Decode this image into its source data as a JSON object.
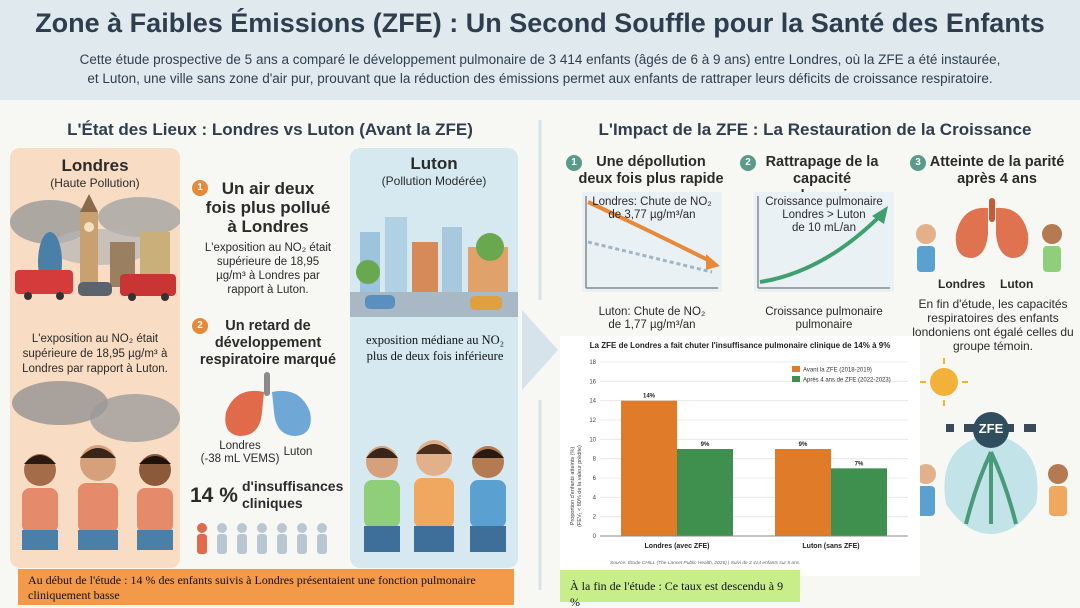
{
  "header": {
    "title": "Zone à Faibles Émissions (ZFE) : Un Second Souffle pour la Santé des Enfants",
    "subtitle_line1": "Cette étude prospective de 5 ans a comparé le développement pulmonaire de 3 414 enfants (âgés de 6 à 9 ans) entre Londres, où la ZFE a été instaurée,",
    "subtitle_line2": "et Luton, une ville sans zone d'air pur, prouvant que la réduction des émissions permet aux enfants de rattraper leurs déficits de croissance respiratoire."
  },
  "left": {
    "title": "L'État des Lieux : Londres vs Luton (Avant la ZFE)",
    "london": {
      "name": "Londres",
      "sub": "(Haute Pollution)",
      "desc_1": "L'exposition au NO₂ était",
      "desc_2": "supérieure de 18,95 µg/m³ à",
      "desc_3": "Londres par rapport à Luton."
    },
    "luton": {
      "name": "Luton",
      "sub": "(Pollution Modérée)",
      "desc_1": "exposition médiane au NO₂",
      "desc_2": "plus de deux fois inférieure"
    },
    "point1": {
      "num": "1",
      "title_1": "Un air deux",
      "title_2": "fois plus pollué",
      "title_3": "à Londres",
      "text_1": "L'exposition au NO₂ était",
      "text_2": "supérieure de 18,95",
      "text_3": "µg/m³ à Londres par",
      "text_4": "rapport à Luton."
    },
    "point2": {
      "num": "2",
      "title_1": "Un retard de",
      "title_2": "développement",
      "title_3": "respiratoire marqué",
      "lung_label_1": "Londres",
      "lung_label_2": "(-38 mL VEMS)",
      "lung_label_3": "Luton"
    },
    "stat": {
      "pct": "14 %",
      "text_1": "d'insuffisances",
      "text_2": "cliniques"
    },
    "footer_1": "Au début de l'étude : 14 % des enfants suivis à Londres présentaient une fonction pulmonaire",
    "footer_2": "cliniquement basse"
  },
  "right": {
    "title": "L'Impact de la ZFE : La Restauration de la Croissance",
    "step1": {
      "num": "1",
      "title_1": "Une dépollution",
      "title_2": "deux fois plus rapide",
      "chart_1": "Londres: Chute de NO₂",
      "chart_2": "de 3,77 µg/m³/an",
      "low_1": "Luton: Chute de NO₂",
      "low_2": "de 1,77 µg/m³/an"
    },
    "step2": {
      "num": "2",
      "title_1": "Rattrapage de la",
      "title_2": "capacité pulmonaire",
      "chart_1": "Croissance pulmonaire",
      "chart_2": "Londres > Luton",
      "chart_3": "de 10 mL/an",
      "low_1": "Croissance pulmonaire",
      "low_2": "pulmonaire"
    },
    "step3": {
      "num": "3",
      "title_1": "Atteinte de la parité",
      "title_2": "après 4 ans",
      "label_london": "Londres",
      "label_luton": "Luton",
      "text_1": "En fin d'étude, les capacités",
      "text_2": "respiratoires des enfants",
      "text_3": "londoniens ont égalé celles du",
      "text_4": "groupe témoin."
    },
    "zfe_badge": "ZFE",
    "footer": "À la fin de l'étude : Ce taux est descendu à 9 %"
  },
  "chart_data": {
    "type": "bar",
    "title": "La ZFE de Londres a fait chuter l'insuffisance pulmonaire clinique de 14% à 9%",
    "categories": [
      "Londres (avec ZFE)",
      "Luton (sans ZFE)"
    ],
    "series": [
      {
        "name": "Avant la ZFE (2018-2019)",
        "values": [
          14,
          9
        ],
        "color": "#e07b2a"
      },
      {
        "name": "Après 4 ans de ZFE (2022-2023)",
        "values": [
          9,
          7
        ],
        "color": "#3f8f4f"
      }
    ],
    "value_labels": [
      [
        "14%",
        "9%"
      ],
      [
        "9%",
        "7%"
      ]
    ],
    "ylabel_1": "Proportion d'enfants atteints (%)",
    "ylabel_2": "(FEV₁ < 80% de la valeur prédite)",
    "ylim": [
      0,
      18
    ],
    "yticks": [
      "0",
      "2",
      "4",
      "6",
      "8",
      "10",
      "12",
      "14",
      "16",
      "18"
    ],
    "grid": true,
    "legend": "top-right",
    "source": "Source: Étude CHILL (The Lancet Public Health, 2026) | Suivi de 3 414 enfants sur 5 ans."
  }
}
